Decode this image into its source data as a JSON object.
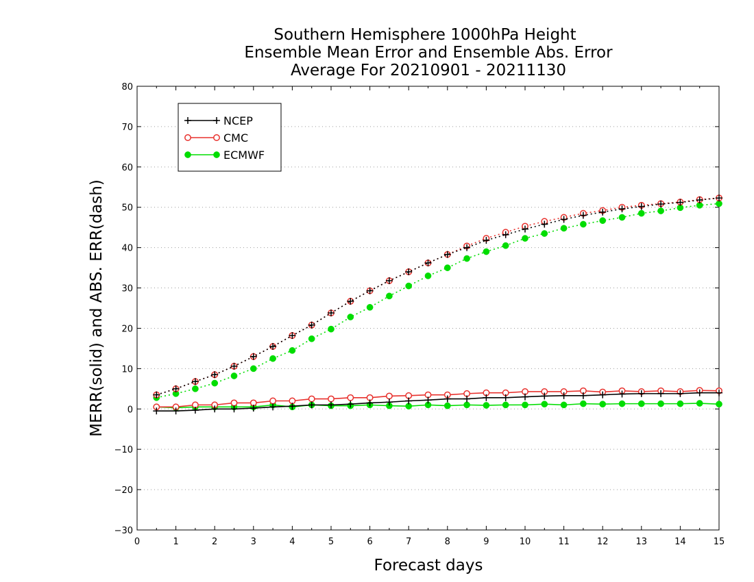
{
  "chart_data": {
    "type": "line",
    "title": [
      "Southern Hemisphere 1000hPa Height",
      "Ensemble Mean Error and Ensemble Abs. Error",
      "Average For 20210901 - 20211130"
    ],
    "xlabel": "Forecast days",
    "ylabel": "MERR(solid) and ABS. ERR(dash)",
    "xlim": [
      0,
      15
    ],
    "ylim": [
      -30,
      80
    ],
    "xticks": [
      "0",
      "1",
      "2",
      "3",
      "4",
      "5",
      "6",
      "7",
      "8",
      "9",
      "10",
      "11",
      "12",
      "13",
      "14",
      "15"
    ],
    "yticks": [
      "−30",
      "−20",
      "−10",
      "0",
      "10",
      "20",
      "30",
      "40",
      "50",
      "60",
      "70",
      "80"
    ],
    "grid": "horizontal dotted",
    "legend_position": "top-left",
    "x": [
      0.5,
      1,
      1.5,
      2,
      2.5,
      3,
      3.5,
      4,
      4.5,
      5,
      5.5,
      6,
      6.5,
      7,
      7.5,
      8,
      8.5,
      9,
      9.5,
      10,
      10.5,
      11,
      11.5,
      12,
      12.5,
      13,
      13.5,
      14,
      14.5,
      15
    ],
    "series": [
      {
        "name": "NCEP",
        "color": "#000000",
        "marker": "plus",
        "merr": [
          -0.5,
          -0.5,
          -0.3,
          0,
          0,
          0.2,
          0.5,
          0.7,
          1,
          1,
          1.2,
          1.5,
          1.7,
          2,
          2.2,
          2.5,
          2.5,
          2.8,
          2.8,
          3,
          3.2,
          3.3,
          3.3,
          3.5,
          3.7,
          3.8,
          3.8,
          3.8,
          4,
          4
        ],
        "abs_err": [
          3.5,
          5,
          6.8,
          8.5,
          10.6,
          13,
          15.5,
          18.2,
          20.8,
          23.8,
          26.7,
          29.3,
          31.8,
          34,
          36.2,
          38.3,
          40,
          41.8,
          43.2,
          44.6,
          45.8,
          47,
          48,
          48.8,
          49.6,
          50.2,
          50.8,
          51.2,
          51.8,
          52.3
        ]
      },
      {
        "name": "CMC",
        "color": "#e8302c",
        "marker": "open-circle",
        "merr": [
          0.5,
          0.5,
          1,
          1,
          1.5,
          1.5,
          2,
          2,
          2.5,
          2.5,
          2.8,
          2.8,
          3.2,
          3.3,
          3.5,
          3.5,
          3.8,
          4,
          4,
          4.3,
          4.3,
          4.3,
          4.5,
          4.2,
          4.5,
          4.3,
          4.5,
          4.3,
          4.6,
          4.5
        ],
        "abs_err": [
          3.5,
          5,
          6.8,
          8.5,
          10.6,
          13,
          15.5,
          18.2,
          20.8,
          23.8,
          26.7,
          29.3,
          31.8,
          34,
          36.2,
          38.3,
          40.4,
          42.3,
          43.8,
          45.3,
          46.5,
          47.5,
          48.5,
          49.2,
          50,
          50.5,
          50.9,
          51.3,
          51.9,
          52.3
        ]
      },
      {
        "name": "ECMWF",
        "color": "#00dd00",
        "marker": "filled-circle",
        "merr": [
          0.5,
          0.3,
          0.5,
          0.5,
          0.5,
          0.5,
          1,
          0.5,
          1,
          0.8,
          0.8,
          1,
          0.8,
          0.7,
          1,
          0.8,
          1,
          0.9,
          1,
          1,
          1.2,
          1,
          1.3,
          1.2,
          1.3,
          1.3,
          1.3,
          1.3,
          1.4,
          1.2
        ],
        "abs_err": [
          2.8,
          3.8,
          5,
          6.4,
          8.2,
          10,
          12.5,
          14.5,
          17.4,
          19.8,
          22.8,
          25.2,
          28,
          30.5,
          33,
          35,
          37.3,
          39,
          40.5,
          42.3,
          43.5,
          44.8,
          45.8,
          46.7,
          47.5,
          48.5,
          49.1,
          49.9,
          50.5,
          50.9
        ]
      }
    ]
  }
}
